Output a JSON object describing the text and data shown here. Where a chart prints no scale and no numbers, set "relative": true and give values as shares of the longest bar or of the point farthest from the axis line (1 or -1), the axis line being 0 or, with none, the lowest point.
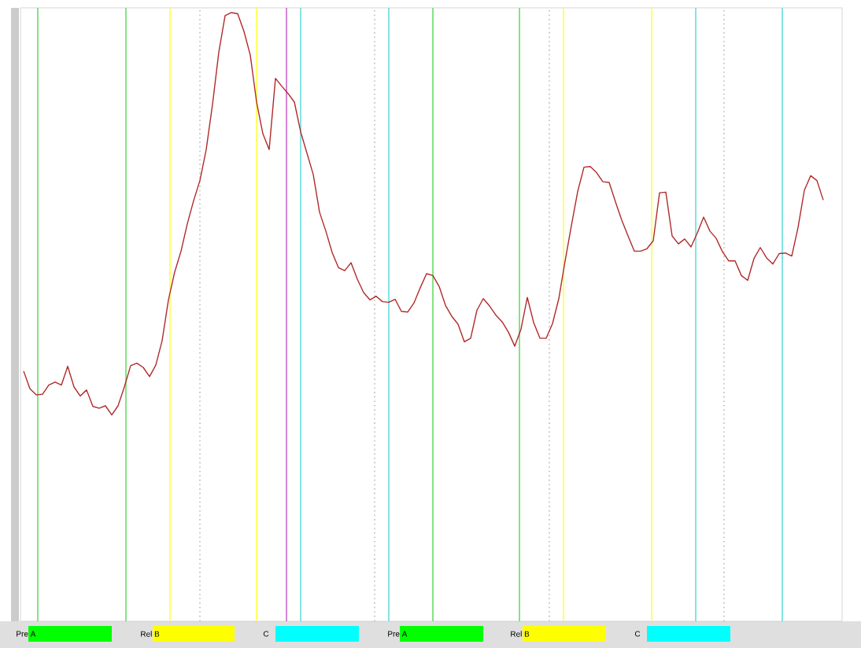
{
  "chart_data": {
    "type": "line",
    "relative": true,
    "tick_labels": false,
    "marker": "none",
    "line_style": "solid",
    "categories": [
      null,
      null,
      null,
      null,
      null,
      null,
      null,
      null,
      null,
      null,
      null,
      null,
      null,
      null,
      null,
      null,
      null,
      null,
      null,
      null,
      null,
      null,
      null,
      null,
      null,
      null,
      null,
      null,
      null,
      null,
      null,
      null,
      null,
      null,
      null,
      null,
      null,
      null,
      null,
      null,
      null,
      null,
      null,
      null,
      null,
      null,
      null,
      null,
      null,
      null,
      null,
      null,
      null,
      null,
      null,
      null,
      null,
      null,
      null,
      null,
      null,
      null,
      null,
      null,
      null,
      null,
      null,
      null,
      null,
      null,
      null,
      null,
      null,
      null,
      null,
      null,
      null,
      null,
      null,
      null,
      null,
      null,
      null,
      null,
      null,
      null,
      null,
      null,
      null,
      null,
      null,
      null,
      null,
      null,
      null,
      null,
      null,
      null,
      null,
      null,
      null,
      null,
      null,
      null,
      null,
      null,
      null,
      null,
      null,
      null,
      null,
      null,
      null,
      null,
      null,
      null,
      null,
      null,
      null,
      null,
      null,
      null,
      null,
      null,
      null,
      null,
      null,
      null
    ],
    "series": [
      {
        "color": "#b02a2a",
        "values": [
          0.411,
          0.382,
          0.372,
          0.373,
          0.388,
          0.393,
          0.388,
          0.419,
          0.385,
          0.37,
          0.38,
          0.353,
          0.35,
          0.354,
          0.339,
          0.354,
          0.385,
          0.42,
          0.424,
          0.417,
          0.402,
          0.421,
          0.461,
          0.528,
          0.574,
          0.608,
          0.653,
          0.691,
          0.724,
          0.775,
          0.849,
          0.935,
          0.995,
          1,
          0.998,
          0.969,
          0.93,
          0.853,
          0.801,
          0.775,
          0.892,
          0.879,
          0.867,
          0.853,
          0.804,
          0.769,
          0.734,
          0.672,
          0.641,
          0.606,
          0.581,
          0.576,
          0.589,
          0.562,
          0.54,
          0.528,
          0.534,
          0.525,
          0.524,
          0.529,
          0.509,
          0.508,
          0.523,
          0.548,
          0.571,
          0.568,
          0.55,
          0.519,
          0.501,
          0.488,
          0.459,
          0.465,
          0.511,
          0.53,
          0.518,
          0.503,
          0.492,
          0.475,
          0.452,
          0.48,
          0.532,
          0.491,
          0.465,
          0.465,
          0.489,
          0.53,
          0.592,
          0.65,
          0.706,
          0.746,
          0.747,
          0.737,
          0.722,
          0.721,
          0.689,
          0.659,
          0.633,
          0.608,
          0.608,
          0.612,
          0.625,
          0.704,
          0.705,
          0.633,
          0.62,
          0.628,
          0.615,
          0.638,
          0.664,
          0.641,
          0.629,
          0.607,
          0.592,
          0.592,
          0.568,
          0.56,
          0.596,
          0.614,
          0.597,
          0.587,
          0.604,
          0.605,
          0.6,
          0.647,
          0.708,
          0.732,
          0.724,
          0.692
        ]
      }
    ],
    "annotations": [
      "Pre A",
      "Rel B",
      "C",
      "Pre A",
      "Rel B",
      "C"
    ]
  }
}
